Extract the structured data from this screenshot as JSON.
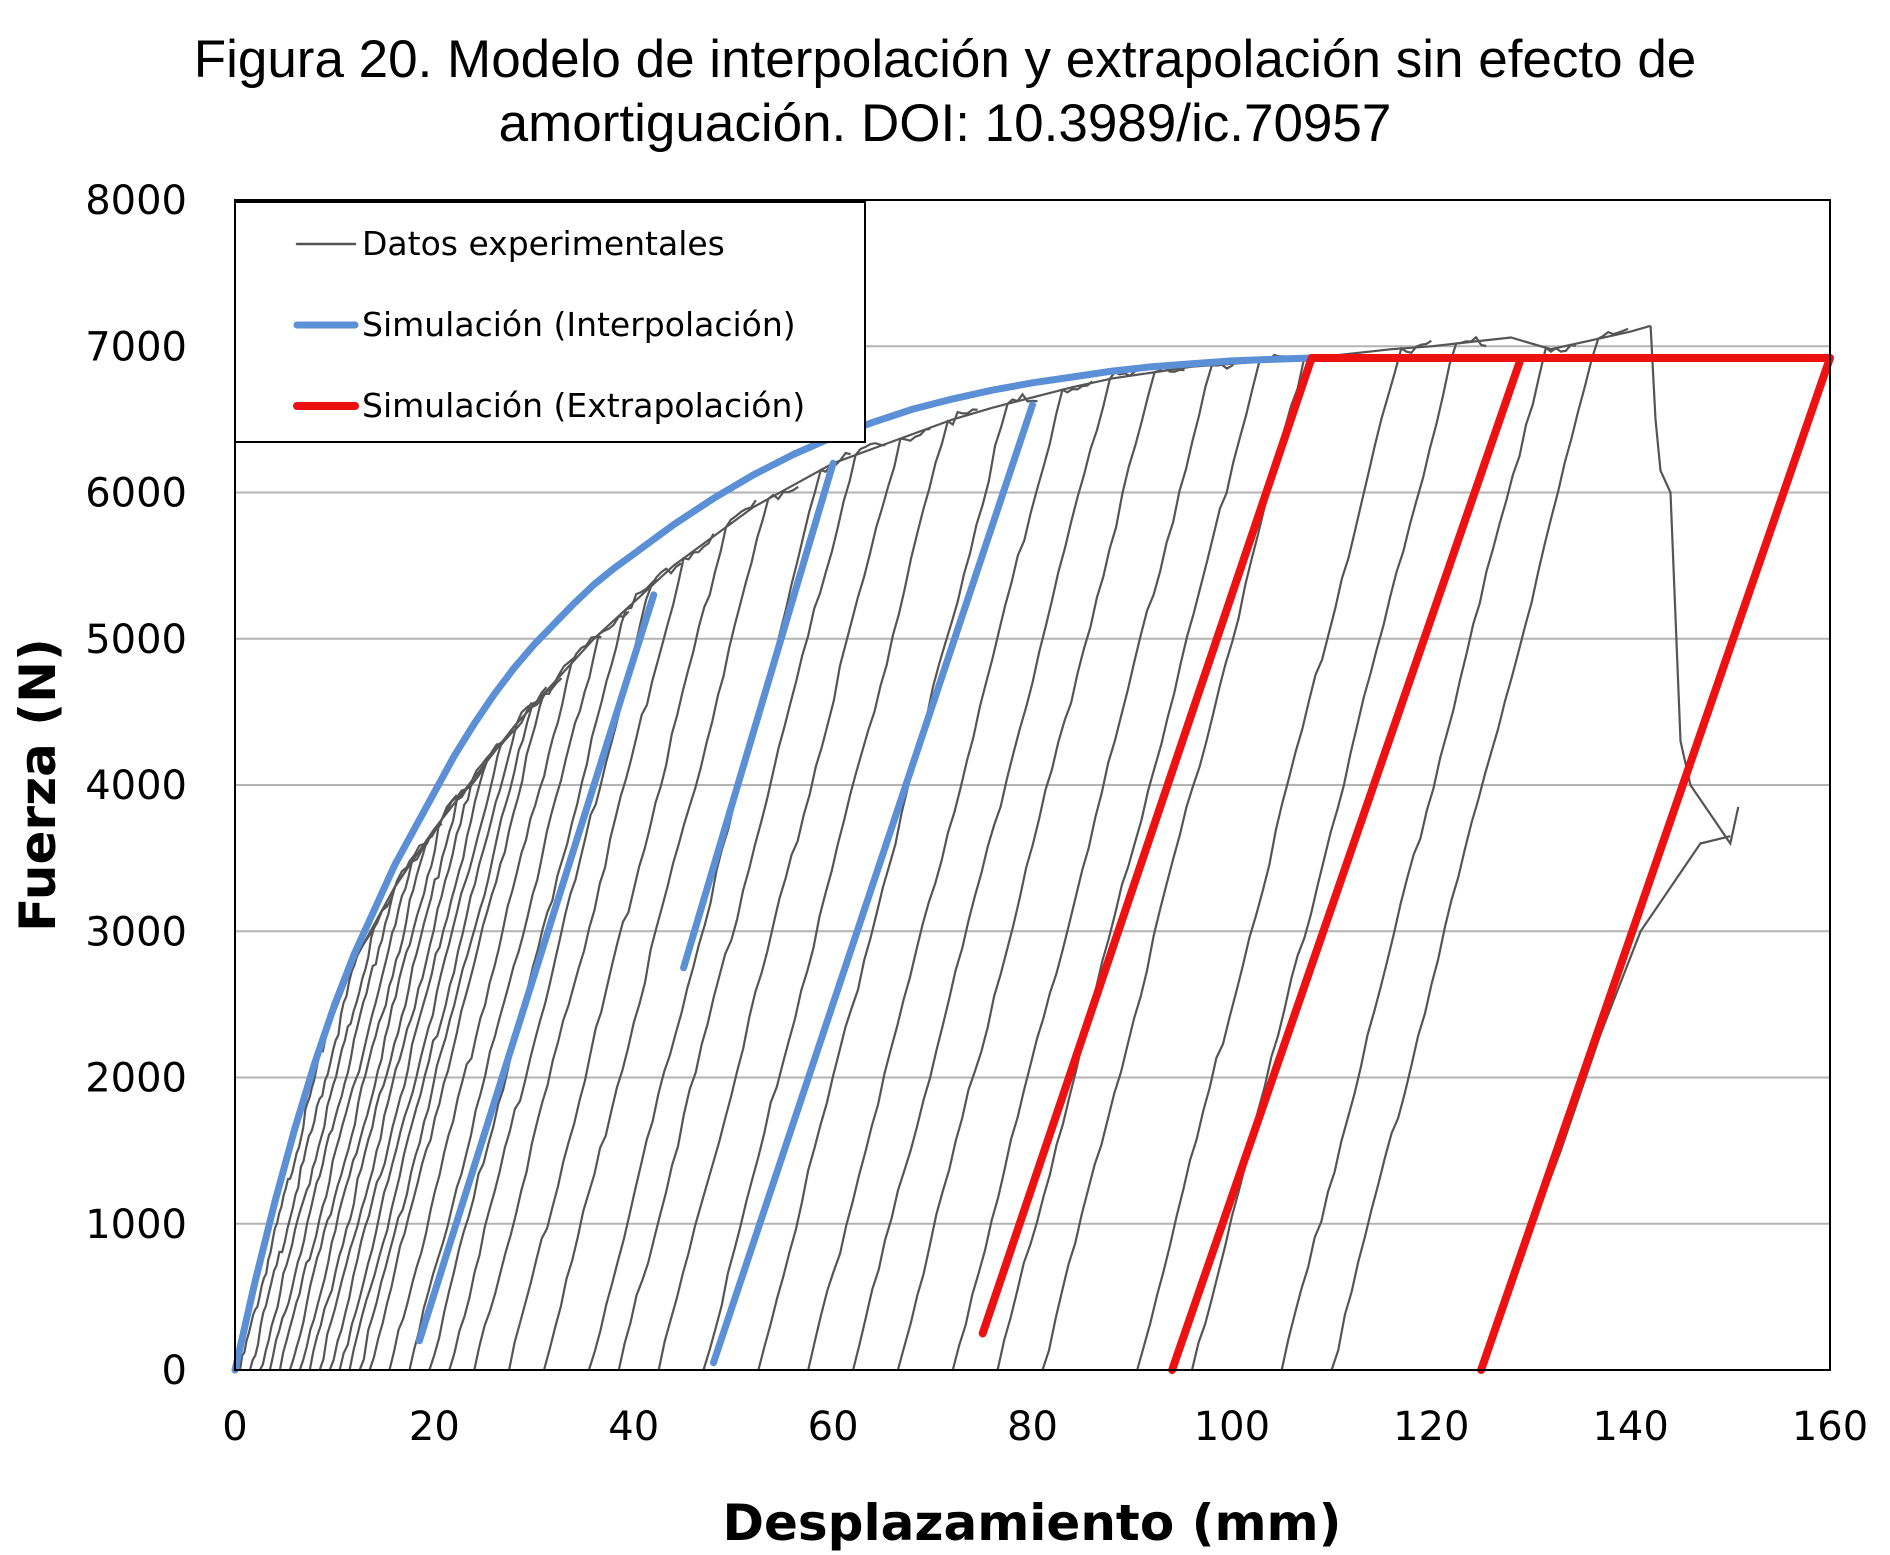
{
  "figure": {
    "title_line1": "Figura 20.  Modelo de interpolación y extrapolación sin efecto de",
    "title_line2": "amortiguación. DOI: 10.3989/ic.70957"
  },
  "chart_data": {
    "type": "line",
    "xlabel": "Desplazamiento  (mm)",
    "ylabel": "Fuerza  (N)",
    "xlim": [
      0,
      160
    ],
    "ylim": [
      0,
      8000
    ],
    "x_ticks": [
      "0",
      "20",
      "40",
      "60",
      "80",
      "100",
      "120",
      "140",
      "160"
    ],
    "y_ticks": [
      "0",
      "1000",
      "2000",
      "3000",
      "4000",
      "5000",
      "6000",
      "7000",
      "8000"
    ],
    "grid": "horizontal",
    "legend_position": "top-left",
    "legend": [
      {
        "label": "Datos experimentales",
        "color": "#555555"
      },
      {
        "label": "Simulación (Interpolación)",
        "color": "#5b8fd6"
      },
      {
        "label": "Simulación (Extrapolación)",
        "color": "#ee1111"
      }
    ],
    "series": [
      {
        "name": "Datos experimentales",
        "color": "#555555",
        "envelope": [
          [
            0,
            0
          ],
          [
            4,
            1200
          ],
          [
            8,
            2100
          ],
          [
            12,
            2800
          ],
          [
            16,
            3300
          ],
          [
            20,
            3700
          ],
          [
            24,
            4050
          ],
          [
            28,
            4400
          ],
          [
            32,
            4700
          ],
          [
            36,
            5000
          ],
          [
            40,
            5250
          ],
          [
            44,
            5500
          ],
          [
            48,
            5700
          ],
          [
            52,
            5900
          ],
          [
            56,
            6050
          ],
          [
            60,
            6200
          ],
          [
            64,
            6300
          ],
          [
            68,
            6400
          ],
          [
            72,
            6500
          ],
          [
            76,
            6580
          ],
          [
            80,
            6650
          ],
          [
            84,
            6720
          ],
          [
            88,
            6780
          ],
          [
            92,
            6820
          ],
          [
            96,
            6860
          ],
          [
            100,
            6880
          ],
          [
            104,
            6900
          ],
          [
            108,
            6920
          ],
          [
            112,
            6950
          ],
          [
            116,
            6980
          ],
          [
            120,
            7000
          ],
          [
            124,
            7030
          ],
          [
            128,
            7060
          ],
          [
            132,
            6980
          ],
          [
            136,
            7040
          ],
          [
            140,
            7100
          ],
          [
            141,
            7120
          ],
          [
            142,
            7140
          ]
        ],
        "cycles": [
          [
            0.5,
            0
          ],
          [
            1.5,
            0
          ],
          [
            2.5,
            0
          ],
          [
            3.5,
            0
          ],
          [
            4.5,
            0
          ],
          [
            5.5,
            0
          ],
          [
            6.5,
            0
          ],
          [
            7.5,
            0
          ],
          [
            8.5,
            0
          ],
          [
            9.5,
            0
          ],
          [
            10.5,
            0
          ],
          [
            11.5,
            0
          ],
          [
            12.5,
            0
          ],
          [
            13.5,
            0
          ],
          [
            15.5,
            0
          ],
          [
            17.5,
            0
          ],
          [
            19.5,
            0
          ],
          [
            21.5,
            0
          ],
          [
            24,
            0
          ],
          [
            27.5,
            0
          ],
          [
            31,
            0
          ],
          [
            35.5,
            0
          ],
          [
            38.5,
            0
          ],
          [
            42.5,
            0
          ],
          [
            47,
            0
          ],
          [
            52.5,
            0
          ],
          [
            57.5,
            0
          ],
          [
            62,
            0
          ],
          [
            66.5,
            0
          ],
          [
            72,
            0
          ],
          [
            76.5,
            0
          ],
          [
            81,
            0
          ],
          [
            90.5,
            0
          ],
          [
            96,
            0
          ],
          [
            105,
            0
          ],
          [
            110,
            0
          ]
        ],
        "final_branch": [
          [
            142,
            7140
          ],
          [
            142.5,
            6500
          ],
          [
            143,
            6150
          ],
          [
            144,
            6000
          ],
          [
            145,
            4300
          ],
          [
            146,
            4000
          ],
          [
            147,
            3900
          ],
          [
            148,
            3800
          ],
          [
            150,
            3600
          ],
          [
            150.8,
            3850
          ]
        ],
        "final_unload": [
          [
            125,
            0
          ],
          [
            128,
            600
          ],
          [
            133,
            1500
          ],
          [
            137,
            2300
          ],
          [
            141,
            3000
          ],
          [
            144,
            3300
          ],
          [
            147,
            3600
          ],
          [
            150,
            3650
          ]
        ]
      },
      {
        "name": "Simulación (Interpolación)",
        "color": "#5b8fd6",
        "curve": [
          [
            0,
            0
          ],
          [
            2,
            600
          ],
          [
            4,
            1150
          ],
          [
            6,
            1650
          ],
          [
            8,
            2100
          ],
          [
            10,
            2500
          ],
          [
            12,
            2850
          ],
          [
            14,
            3150
          ],
          [
            16,
            3450
          ],
          [
            18,
            3700
          ],
          [
            20,
            3950
          ],
          [
            22,
            4200
          ],
          [
            24,
            4420
          ],
          [
            26,
            4620
          ],
          [
            28,
            4800
          ],
          [
            30,
            4960
          ],
          [
            32,
            5100
          ],
          [
            34,
            5240
          ],
          [
            36,
            5370
          ],
          [
            38,
            5480
          ],
          [
            40,
            5580
          ],
          [
            44,
            5780
          ],
          [
            48,
            5960
          ],
          [
            52,
            6120
          ],
          [
            56,
            6260
          ],
          [
            60,
            6380
          ],
          [
            64,
            6480
          ],
          [
            68,
            6570
          ],
          [
            72,
            6640
          ],
          [
            76,
            6700
          ],
          [
            80,
            6750
          ],
          [
            84,
            6790
          ],
          [
            88,
            6830
          ],
          [
            92,
            6860
          ],
          [
            96,
            6880
          ],
          [
            100,
            6900
          ],
          [
            104,
            6910
          ],
          [
            108,
            6920
          ]
        ],
        "unload_segments": [
          [
            [
              18.5,
              200
            ],
            [
              42,
              5300
            ]
          ],
          [
            [
              45,
              2750
            ],
            [
              60,
              6200
            ]
          ],
          [
            [
              48,
              50
            ],
            [
              80,
              6600
            ]
          ]
        ]
      },
      {
        "name": "Simulación (Extrapolación)",
        "color": "#ee1111",
        "segments": [
          [
            [
              75,
              250
            ],
            [
              108,
              6920
            ],
            [
              160,
              6920
            ],
            [
              125,
              0
            ]
          ],
          [
            [
              94,
              0
            ],
            [
              129,
              6920
            ]
          ]
        ]
      }
    ]
  }
}
